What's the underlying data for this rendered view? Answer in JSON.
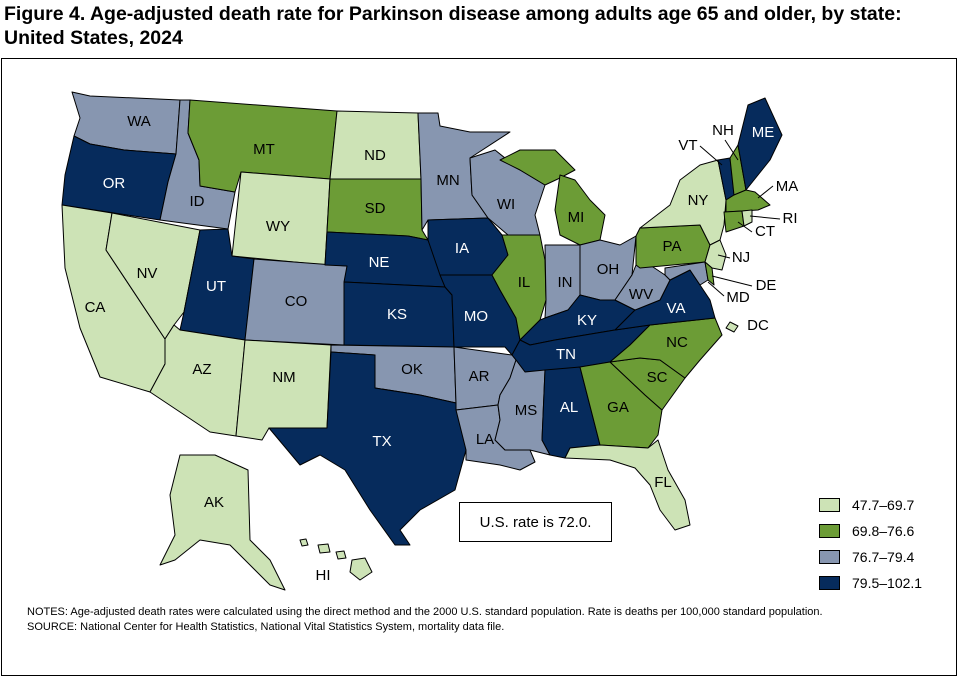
{
  "title": "Figure 4. Age-adjusted death rate for Parkinson disease among adults age 65 and older, by state: United States, 2024",
  "colors": {
    "c1": "#cde3b6",
    "c2": "#6c9c36",
    "c3": "#8796b0",
    "c4": "#062b5c",
    "border": "#000000",
    "water": "#ffffff"
  },
  "legend": [
    {
      "label": "47.7–69.7",
      "color_key": "c1"
    },
    {
      "label": "69.8–76.6",
      "color_key": "c2"
    },
    {
      "label": "76.7–79.4",
      "color_key": "c3"
    },
    {
      "label": "79.5–102.1",
      "color_key": "c4"
    }
  ],
  "us_rate_text": "U.S. rate is 72.0.",
  "states": [
    {
      "abbr": "WA",
      "cls": "c3"
    },
    {
      "abbr": "OR",
      "cls": "c4"
    },
    {
      "abbr": "CA",
      "cls": "c1"
    },
    {
      "abbr": "ID",
      "cls": "c3"
    },
    {
      "abbr": "NV",
      "cls": "c1"
    },
    {
      "abbr": "MT",
      "cls": "c2"
    },
    {
      "abbr": "WY",
      "cls": "c1"
    },
    {
      "abbr": "UT",
      "cls": "c4"
    },
    {
      "abbr": "AZ",
      "cls": "c1"
    },
    {
      "abbr": "CO",
      "cls": "c3"
    },
    {
      "abbr": "NM",
      "cls": "c1"
    },
    {
      "abbr": "ND",
      "cls": "c1"
    },
    {
      "abbr": "SD",
      "cls": "c2"
    },
    {
      "abbr": "NE",
      "cls": "c4"
    },
    {
      "abbr": "KS",
      "cls": "c4"
    },
    {
      "abbr": "OK",
      "cls": "c3"
    },
    {
      "abbr": "TX",
      "cls": "c4"
    },
    {
      "abbr": "MN",
      "cls": "c3"
    },
    {
      "abbr": "IA",
      "cls": "c4"
    },
    {
      "abbr": "MO",
      "cls": "c4"
    },
    {
      "abbr": "AR",
      "cls": "c3"
    },
    {
      "abbr": "LA",
      "cls": "c3"
    },
    {
      "abbr": "WI",
      "cls": "c3"
    },
    {
      "abbr": "IL",
      "cls": "c2"
    },
    {
      "abbr": "MI",
      "cls": "c2"
    },
    {
      "abbr": "IN",
      "cls": "c3"
    },
    {
      "abbr": "OH",
      "cls": "c3"
    },
    {
      "abbr": "KY",
      "cls": "c4"
    },
    {
      "abbr": "TN",
      "cls": "c4"
    },
    {
      "abbr": "MS",
      "cls": "c3"
    },
    {
      "abbr": "AL",
      "cls": "c4"
    },
    {
      "abbr": "GA",
      "cls": "c2"
    },
    {
      "abbr": "FL",
      "cls": "c1"
    },
    {
      "abbr": "SC",
      "cls": "c2"
    },
    {
      "abbr": "NC",
      "cls": "c2"
    },
    {
      "abbr": "VA",
      "cls": "c4"
    },
    {
      "abbr": "WV",
      "cls": "c3"
    },
    {
      "abbr": "PA",
      "cls": "c2"
    },
    {
      "abbr": "NY",
      "cls": "c1"
    },
    {
      "abbr": "NJ",
      "cls": "c1"
    },
    {
      "abbr": "DE",
      "cls": "c2"
    },
    {
      "abbr": "MD",
      "cls": "c3"
    },
    {
      "abbr": "DC",
      "cls": "c1"
    },
    {
      "abbr": "CT",
      "cls": "c2"
    },
    {
      "abbr": "RI",
      "cls": "c1"
    },
    {
      "abbr": "MA",
      "cls": "c2"
    },
    {
      "abbr": "VT",
      "cls": "c4"
    },
    {
      "abbr": "NH",
      "cls": "c2"
    },
    {
      "abbr": "ME",
      "cls": "c4"
    },
    {
      "abbr": "AK",
      "cls": "c1"
    },
    {
      "abbr": "HI",
      "cls": "c1"
    }
  ],
  "notes": {
    "notes_text": "NOTES: Age-adjusted death rates were calculated using the direct method and the 2000 U.S. standard population. Rate is deaths per 100,000 standard population.",
    "source_text": "SOURCE: National Center for Health Statistics, National Vital Statistics System, mortality data file."
  }
}
